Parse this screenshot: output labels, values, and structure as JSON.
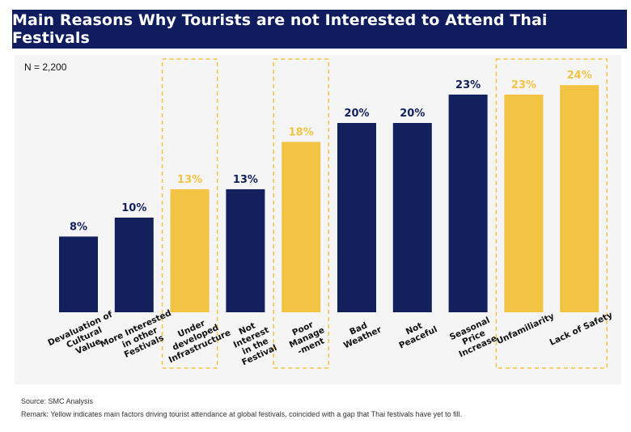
{
  "chart_data": {
    "type": "bar",
    "title": "Main Reasons Why Tourists are not Interested to Attend Thai Festivals",
    "sample_note": "N = 2,200",
    "categories": [
      [
        "Devaluation of",
        "Cultural",
        "Value"
      ],
      [
        "More Interested",
        "in other",
        "Festivals"
      ],
      [
        "Under",
        "developed",
        "Infrastructure"
      ],
      [
        "Not",
        "Interest",
        "in the",
        "Festival"
      ],
      [
        "Poor",
        "Manage",
        "-ment"
      ],
      [
        "Bad",
        "Weather"
      ],
      [
        "Not",
        "Peaceful"
      ],
      [
        "Seasonal",
        "Price",
        "Increase"
      ],
      [
        "Unfamiliarity"
      ],
      [
        "Lack of Safety"
      ]
    ],
    "values": [
      8,
      10,
      13,
      13,
      18,
      20,
      20,
      23,
      23,
      24
    ],
    "value_labels": [
      "8%",
      "10%",
      "13%",
      "13%",
      "18%",
      "20%",
      "20%",
      "23%",
      "23%",
      "24%"
    ],
    "highlighted": [
      false,
      false,
      true,
      false,
      true,
      false,
      false,
      false,
      true,
      true
    ],
    "colors": {
      "default": "#13205e",
      "highlight": "#f3c343",
      "banner": "#0f1d5e"
    },
    "ylim": [
      0,
      25
    ],
    "grid": false,
    "legend": "none"
  },
  "footer": {
    "source": "Source: SMC Analysis",
    "remark": "Remark: Yellow indicates main factors driving tourist attendance at global festivals, coincided with a gap that Thai festivals have yet to fill."
  }
}
